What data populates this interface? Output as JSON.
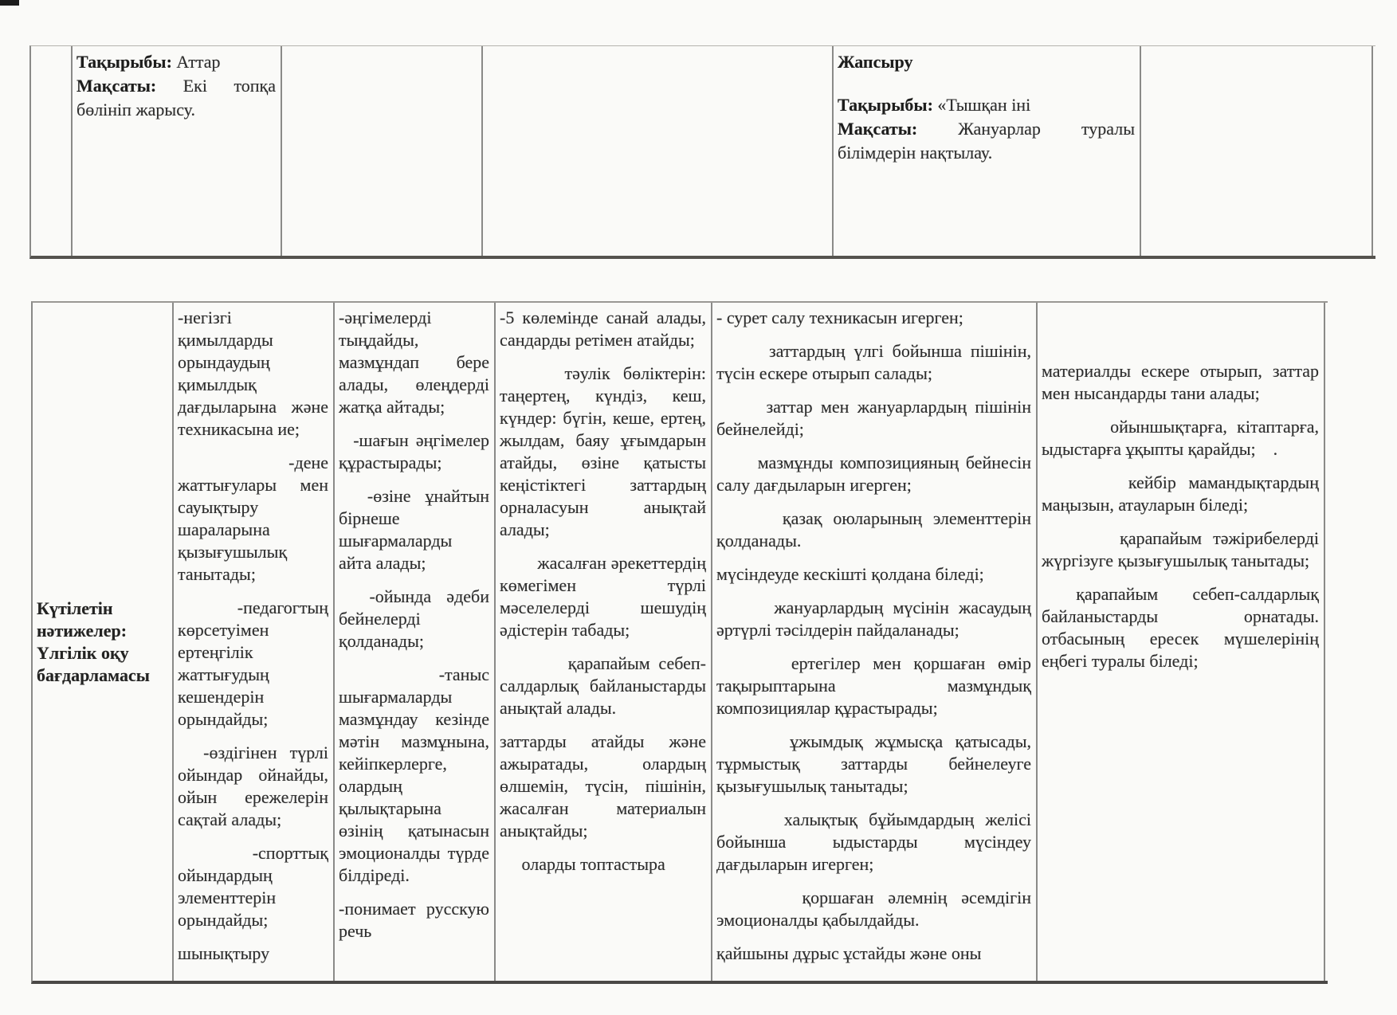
{
  "page": {
    "kind": "scanned curriculum table document",
    "ink_color": "#2e2e2e",
    "paper_color": "#fafaf8",
    "border_color": "#8a8a88"
  },
  "top_table": {
    "cells": {
      "attar": {
        "line1_label": "Тақырыбы:",
        "line1_text": " Аттар",
        "line2_label": "Мақсаты:",
        "line2_text": " Екі топқа бөлініп жарысу."
      },
      "zhapsyru": {
        "title": "Жапсыру",
        "line1_label": "Тақырыбы:",
        "line1_text": " «Тышқан іні",
        "line2_label": "Мақсаты:",
        "line2_text": " Жануарлар туралы білімдерін нақтылау."
      }
    }
  },
  "results_table": {
    "header": "Күтілетін нәтижелер: Үлгілік оқу бағдарламасы",
    "columns": [
      {
        "paragraphs": [
          "-негізгі қимылдарды орындаудың қимылдық дағдыларына және техникасына ие;",
          "  -дене жаттығулары мен сауықтыру шараларына қызығушылық танытады;",
          "  -педагогтың көрсетуімен ертеңгілік жаттығудың кешендерін орындайды;",
          "  -өздігінен түрлі ойындар ойнайды, ойын ережелерін сақтай алады;",
          "  -спорттық ойындардың элементтерін орындайды;",
          "шынықтыру"
        ]
      },
      {
        "paragraphs": [
          "-әңгімелерді тыңдайды, мазмұндап бере алады, өлеңдерді жатқа айтады;",
          "  -шағын әңгімелер құрастырады;",
          "  -өзіне ұнайтын бірнеше шығармаларды айта алады;",
          "  -ойында әдеби бейнелерді қолданады;",
          "  -таныс шығармаларды мазмұндау кезінде мәтін мазмұнына, кейіпкерлерге, олардың қылықтарына өзінің қатынасын эмоционалды түрде білдіреді.",
          "-понимает русскую речь"
        ]
      },
      {
        "paragraphs": [
          "-5 көлемінде санай алады, сандарды ретімен атайды;",
          "     тәулік бөліктерін: таңертең, күндіз, кеш, күндер: бүгін, кеше, ертең, жылдам, баяу ұғымдарын атайды, өзіне қатысты кеңістіктегі заттардың орналасуын анықтай алады;",
          "        жасалған әрекеттердің көмегімен түрлі мәселелерді шешудің әдістерін табады;",
          "        қарапайым себеп-салдарлық байланыстарды анықтай алады.",
          "заттарды атайды және ажыратады, олардың өлшемін, түсін, пішінін, жасалған материалын анықтайды;",
          "     оларды топтастыра"
        ]
      },
      {
        "paragraphs": [
          "- сурет салу техникасын игерген;",
          "      заттардың үлгі бойынша пішінін, түсін ескере отырып салады;",
          "      заттар мен жануарлардың пішінін бейнелейді;",
          "      мазмұнды композицияның бейнесін салу дағдыларын игерген;",
          "      қазақ оюларының элементтерін қолданады.",
          "мүсіндеуде кескішті қолдана біледі;",
          "      жануарлардың мүсінін жасаудың әртүрлі тәсілдерін пайдаланады;",
          "      ертегілер мен қоршаған өмір тақырыптарына мазмұндық композициялар құрастырады;",
          "      ұжымдық жұмысқа қатысады, тұрмыстық заттарды бейнелеуге қызығушылық танытады;",
          "      халықтық бұйымдардың желісі бойынша ыдыстарды мүсіндеу дағдыларын игерген;",
          "      қоршаған әлемнің әсемдігін эмоционалды қабылдайды.",
          "қайшыны дұрыс ұстайды және оны"
        ]
      },
      {
        "paragraphs": [
          "материалды ескере отырып, заттар мен нысандарды тани алады;",
          "       ойыншықтарға, кітаптарға, ыдыстарға ұқыпты қарайды;    .",
          "       кейбір мамандықтардың маңызын, атауларын біледі;",
          "       қарапайым тәжірибелерді жүргізуге қызығушылық танытады;",
          " қарапайым себеп-салдарлық байланыстарды орнатады. отбасының ересек мүшелерінің еңбегі туралы біледі;"
        ]
      }
    ]
  }
}
